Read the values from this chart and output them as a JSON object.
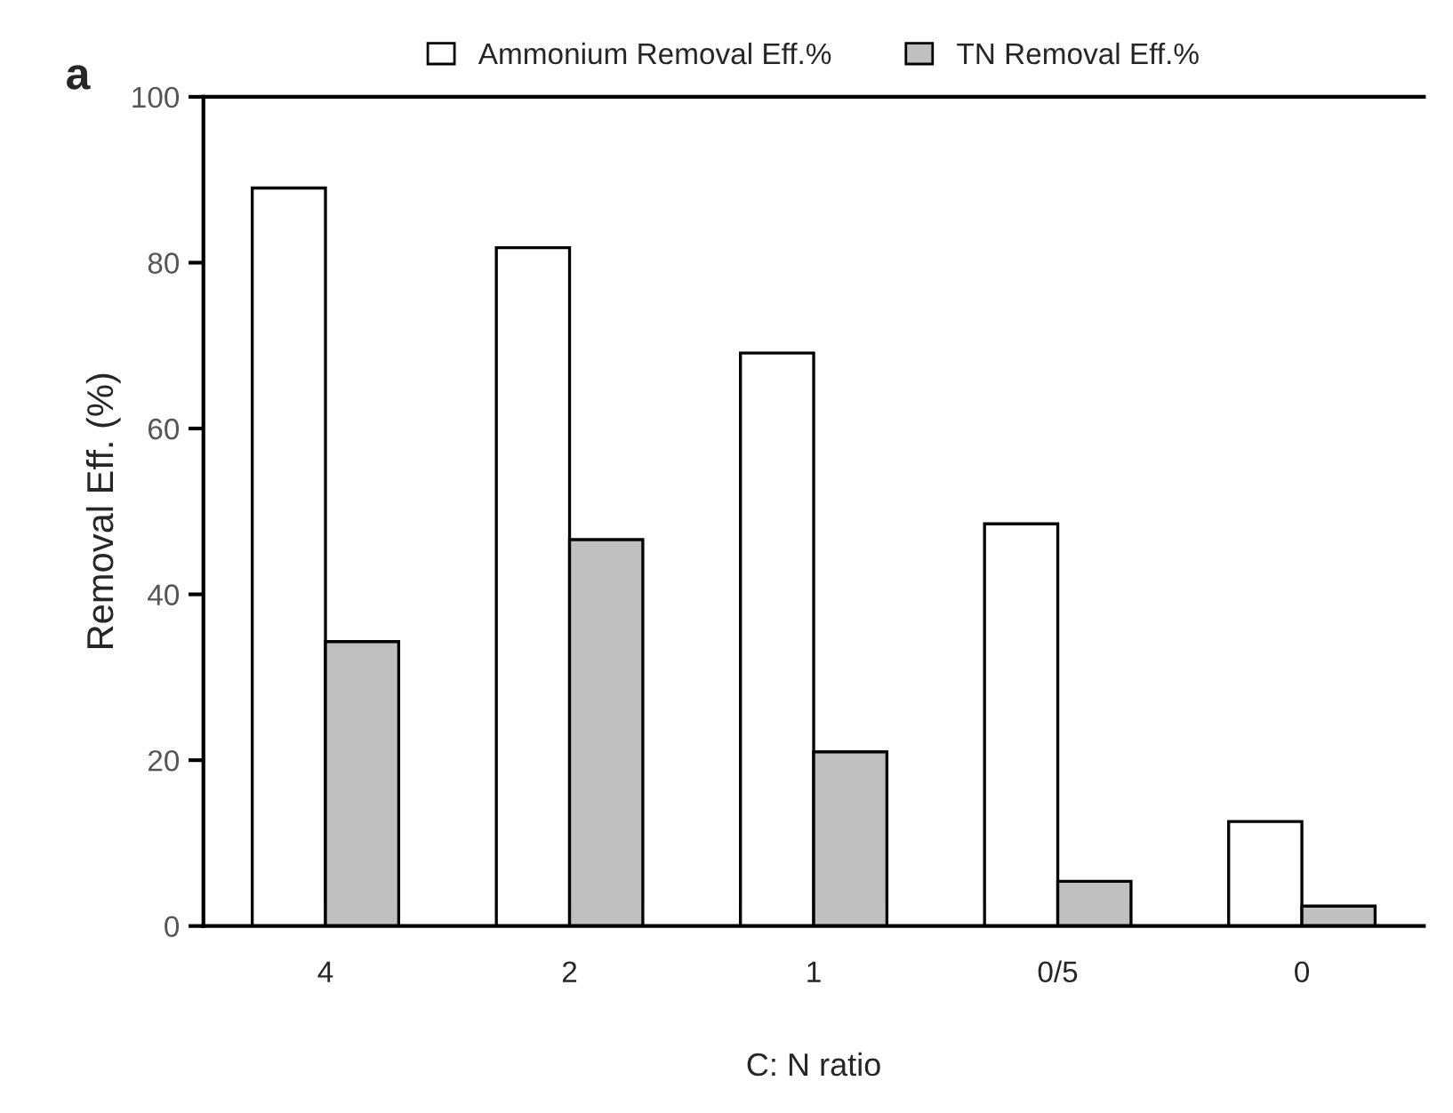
{
  "chart_data": {
    "type": "bar",
    "xlabel": "C: N ratio",
    "ylabel": "Removal Eff. (%)",
    "annotations": [
      "a"
    ],
    "categories": [
      "4",
      "2",
      "1",
      "0/5",
      "0"
    ],
    "series": [
      {
        "name": "Ammonium Removal Eff.%",
        "color": "#ffffff",
        "values": [
          89.0,
          81.8,
          69.1,
          48.5,
          12.6
        ]
      },
      {
        "name": "TN Removal Eff.%",
        "color": "#c0c0c0",
        "values": [
          34.3,
          46.6,
          21.0,
          5.4,
          2.4
        ]
      }
    ],
    "ylim": [
      0,
      100
    ],
    "yticks": [
      0,
      20,
      40,
      60,
      80,
      100
    ],
    "grid": false,
    "legend": "top"
  }
}
